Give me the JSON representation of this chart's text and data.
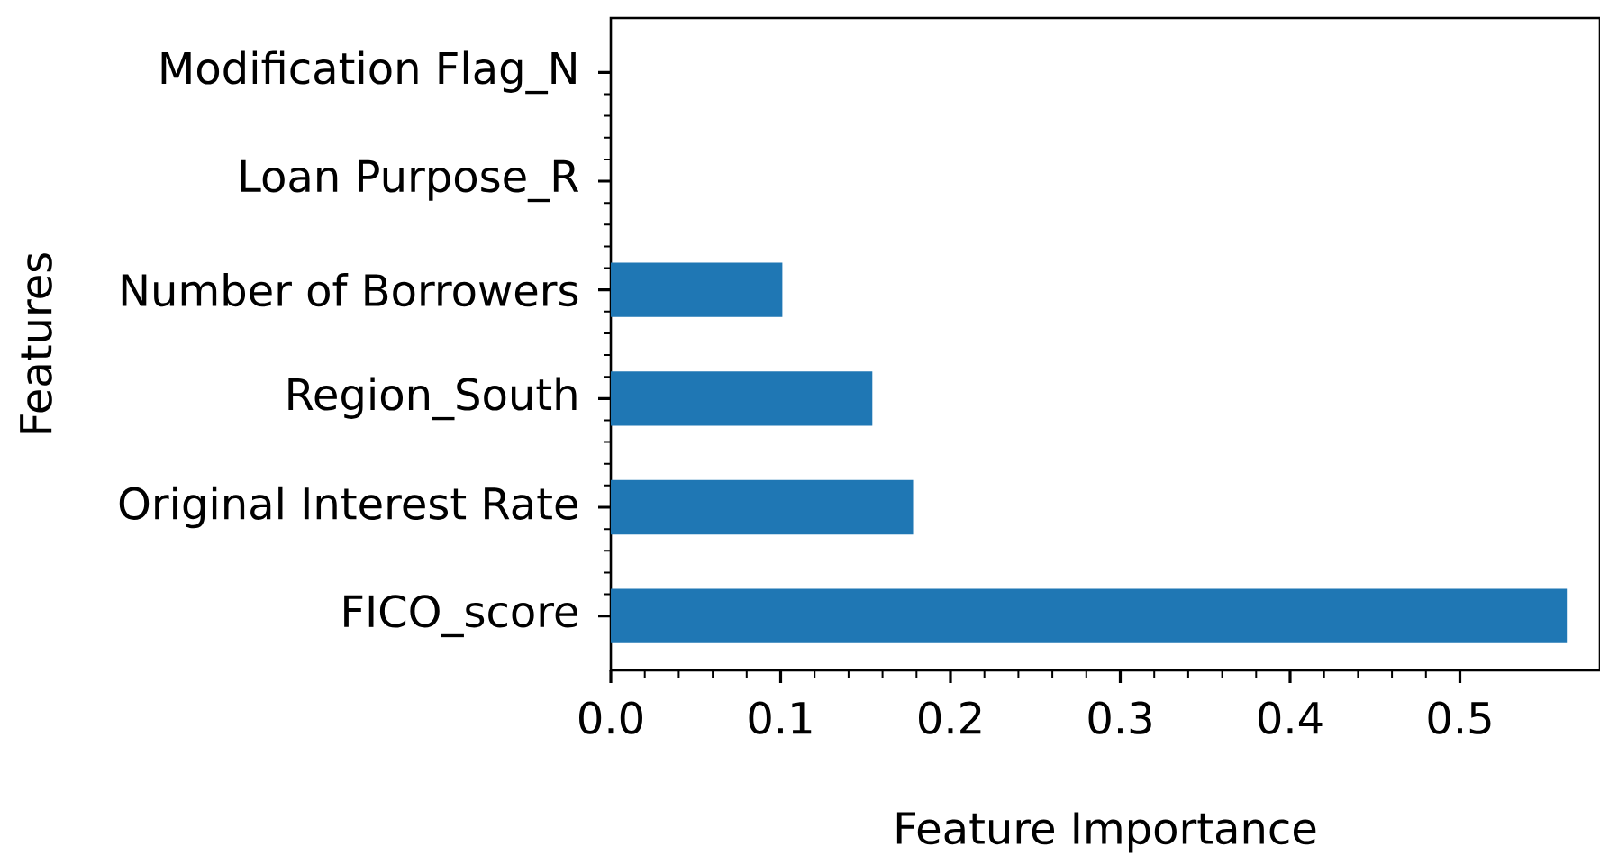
{
  "chart_data": {
    "type": "bar",
    "orientation": "horizontal",
    "categories": [
      "Modification Flag_N",
      "Loan Purpose_R",
      "Number of Borrowers",
      "Region_South",
      "Original Interest Rate",
      "FICO_score"
    ],
    "values": [
      0,
      0,
      0.101,
      0.154,
      0.178,
      0.563
    ],
    "color": "#1f77b4",
    "xlabel": "Feature Importance",
    "ylabel": "Features",
    "xlim": [
      0,
      0.5825
    ],
    "xticks": [
      {
        "value": 0,
        "label": "0.0"
      },
      0.1,
      0.2,
      0.3,
      0.4,
      0.5
    ]
  }
}
